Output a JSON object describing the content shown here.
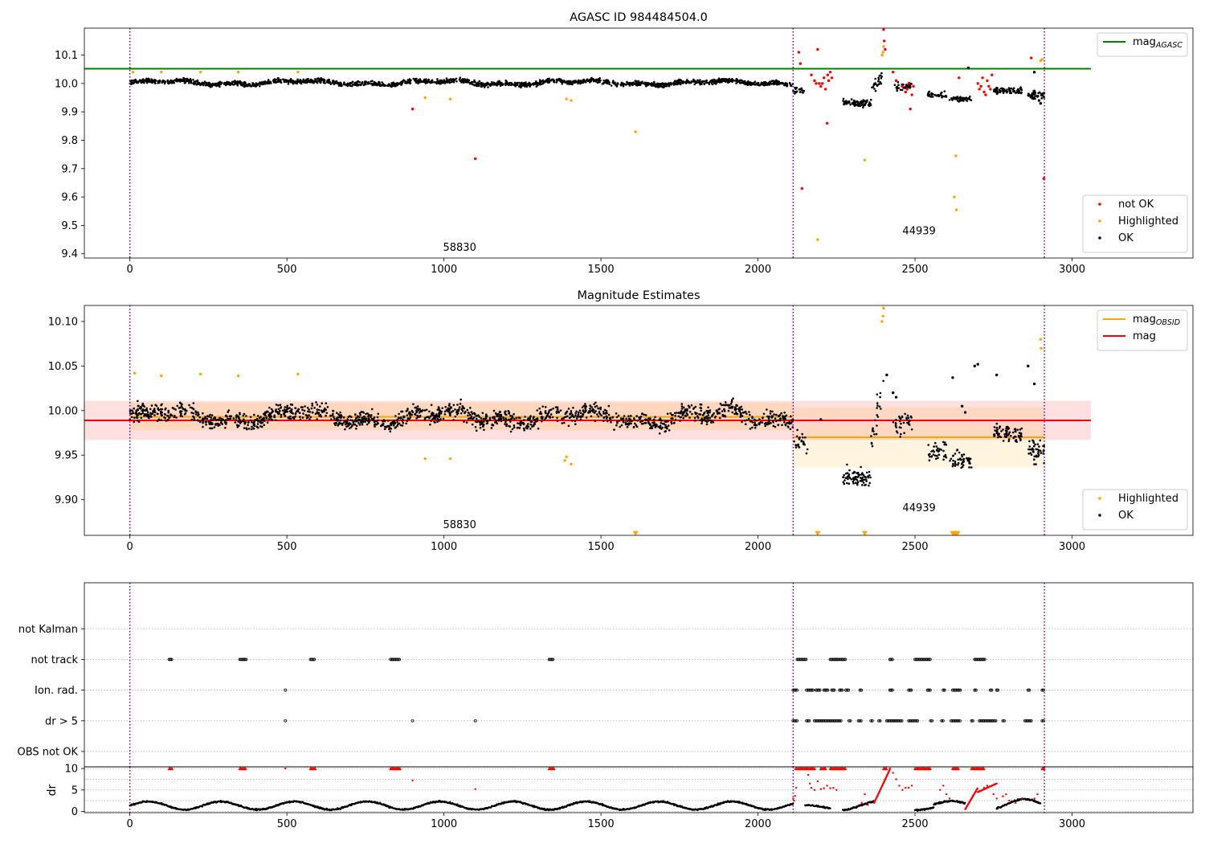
{
  "figure": {
    "background": "#ffffff"
  },
  "chart_data": [
    {
      "id": "top",
      "type": "scatter",
      "title": "AGASC ID 984484504.0",
      "xlim": [
        -145,
        3385
      ],
      "ylim": [
        9.385,
        10.195
      ],
      "xticks": [
        0,
        500,
        1000,
        1500,
        2000,
        2500,
        3000
      ],
      "yticks": [
        9.4,
        9.5,
        9.6,
        9.7,
        9.8,
        9.9,
        10.0,
        10.1
      ],
      "ytick_labels": [
        "9.4",
        "9.5",
        "9.6",
        "9.7",
        "9.8",
        "9.9",
        "10.0",
        "10.1"
      ],
      "grid": false,
      "vlines": [
        0,
        2112,
        2912
      ],
      "obsid_labels": [
        {
          "text": "58830",
          "x": 1050,
          "y": 9.41
        },
        {
          "text": "44939",
          "x": 2513,
          "y": 9.468
        }
      ],
      "hlines": [
        {
          "name": "mag",
          "sub": "AGASC",
          "y": 10.052,
          "x0": -145,
          "x1": 3060,
          "color": "#008000",
          "band": null
        }
      ],
      "segments": [
        {
          "x0": 0,
          "x1": 2112,
          "base": 10.003,
          "noise": 0.012,
          "trend": "osc",
          "density": 0.85
        },
        {
          "x0": 2112,
          "x1": 2150,
          "base": 9.975,
          "noise": 0.015,
          "trend": "flat",
          "density": 0.5
        },
        {
          "x0": 2270,
          "x1": 2360,
          "base": 9.93,
          "noise": 0.02,
          "trend": "flat",
          "density": 0.9
        },
        {
          "x0": 2360,
          "x1": 2400,
          "base": 9.97,
          "noise": 0.03,
          "trend": "rise",
          "density": 0.6
        },
        {
          "x0": 2430,
          "x1": 2490,
          "base": 9.99,
          "noise": 0.02,
          "trend": "flat",
          "density": 0.6
        },
        {
          "x0": 2540,
          "x1": 2600,
          "base": 9.96,
          "noise": 0.015,
          "trend": "flat",
          "density": 0.6
        },
        {
          "x0": 2610,
          "x1": 2680,
          "base": 9.945,
          "noise": 0.015,
          "trend": "flat",
          "density": 0.7
        },
        {
          "x0": 2750,
          "x1": 2840,
          "base": 9.975,
          "noise": 0.015,
          "trend": "flat",
          "density": 0.8
        },
        {
          "x0": 2860,
          "x1": 2912,
          "base": 9.96,
          "noise": 0.02,
          "trend": "flat",
          "density": 0.8
        }
      ],
      "series": [
        {
          "name": "not OK",
          "color": "#ff0000",
          "marker": "dot",
          "x": [
            900,
            1100,
            2130,
            2135,
            2140,
            2170,
            2180,
            2185,
            2190,
            2195,
            2200,
            2205,
            2210,
            2215,
            2220,
            2222,
            2225,
            2230,
            2235,
            2400,
            2402,
            2405,
            2430,
            2440,
            2460,
            2470,
            2475,
            2480,
            2485,
            2490,
            2495,
            2640,
            2700,
            2705,
            2710,
            2715,
            2720,
            2725,
            2730,
            2735,
            2740,
            2745,
            2870,
            2910
          ],
          "y": [
            9.91,
            9.735,
            10.11,
            10.07,
            9.63,
            10.03,
            10.01,
            10.0,
            10.12,
            10.0,
            9.99,
            10.0,
            10.02,
            9.98,
            9.86,
            10.03,
            10.01,
            10.04,
            10.02,
            10.19,
            10.15,
            10.12,
            10.04,
            10.01,
            9.99,
            9.97,
            9.98,
            10.0,
            9.91,
            9.96,
            9.99,
            10.02,
            10.0,
            9.98,
            9.99,
            10.02,
            9.97,
            9.96,
            10.01,
            9.99,
            9.98,
            10.03,
            10.09,
            9.665
          ]
        },
        {
          "name": "Highlighted",
          "color": "#ffa500",
          "marker": "dot",
          "x": [
            10,
            100,
            225,
            345,
            535,
            940,
            1020,
            1390,
            1405,
            1610,
            2190,
            2340,
            2395,
            2398,
            2400,
            2625,
            2630,
            2632,
            2900,
            2905
          ],
          "y": [
            10.04,
            10.04,
            10.04,
            10.04,
            10.04,
            9.95,
            9.945,
            9.945,
            9.94,
            9.83,
            9.45,
            9.73,
            10.1,
            10.11,
            10.13,
            9.6,
            9.745,
            9.555,
            10.08,
            10.085
          ]
        },
        {
          "name": "OK",
          "color": "#000000",
          "marker": "dot",
          "x": [
            2670,
            2880,
            2895,
            2900
          ],
          "y": [
            10.055,
            10.04,
            9.94,
            9.93
          ]
        }
      ],
      "legends": [
        {
          "position": "upper-right",
          "entries": [
            {
              "label": "mag",
              "sub": "AGASC",
              "color": "#008000",
              "kind": "line"
            }
          ]
        },
        {
          "position": "lower-right",
          "entries": [
            {
              "label": "not OK",
              "color": "#ff0000",
              "kind": "dot"
            },
            {
              "label": "Highlighted",
              "color": "#ffa500",
              "kind": "dot"
            },
            {
              "label": "OK",
              "color": "#000000",
              "kind": "dot"
            }
          ]
        }
      ]
    },
    {
      "id": "mid",
      "type": "scatter",
      "title": "Magnitude Estimates",
      "xlim": [
        -145,
        3385
      ],
      "ylim": [
        9.86,
        10.118
      ],
      "xticks": [
        0,
        500,
        1000,
        1500,
        2000,
        2500,
        3000
      ],
      "yticks": [
        9.9,
        9.95,
        10.0,
        10.05,
        10.1
      ],
      "ytick_labels": [
        "9.90",
        "9.95",
        "10.00",
        "10.05",
        "10.10"
      ],
      "grid": false,
      "vlines": [
        0,
        2112,
        2912
      ],
      "obsid_labels": [
        {
          "text": "58830",
          "x": 1050,
          "y": 9.868
        },
        {
          "text": "44939",
          "x": 2513,
          "y": 9.887
        }
      ],
      "hlines": [
        {
          "name": "mag",
          "sub": "",
          "y": 9.989,
          "x0": -145,
          "x1": 3060,
          "color": "#ff0000",
          "band": [
            9.967,
            10.011
          ],
          "band_color": "#ff0000",
          "band_opacity": 0.12
        },
        {
          "name": "mag",
          "sub": "OBSID",
          "y": 9.993,
          "x0": 0,
          "x1": 2112,
          "color": "#ffa500",
          "band": [
            9.978,
            10.009
          ],
          "band_color": "#ffa500",
          "band_opacity": 0.15
        },
        {
          "name": "mag",
          "sub": "OBSID",
          "y": 9.97,
          "x0": 2112,
          "x1": 2912,
          "color": "#ffa500",
          "band": [
            9.936,
            10.004
          ],
          "band_color": "#ffa500",
          "band_opacity": 0.12
        }
      ],
      "segments": [
        {
          "x0": 0,
          "x1": 2112,
          "base": 9.993,
          "noise": 0.014,
          "trend": "osc",
          "density": 0.75
        },
        {
          "x0": 2112,
          "x1": 2160,
          "base": 9.965,
          "noise": 0.02,
          "trend": "flat",
          "density": 0.5
        },
        {
          "x0": 2270,
          "x1": 2360,
          "base": 9.925,
          "noise": 0.015,
          "trend": "flat",
          "density": 0.9
        },
        {
          "x0": 2360,
          "x1": 2400,
          "base": 9.965,
          "noise": 0.025,
          "trend": "rise",
          "density": 0.6
        },
        {
          "x0": 2430,
          "x1": 2490,
          "base": 9.985,
          "noise": 0.02,
          "trend": "flat",
          "density": 0.6
        },
        {
          "x0": 2540,
          "x1": 2600,
          "base": 9.955,
          "noise": 0.015,
          "trend": "flat",
          "density": 0.6
        },
        {
          "x0": 2610,
          "x1": 2680,
          "base": 9.945,
          "noise": 0.015,
          "trend": "flat",
          "density": 0.7
        },
        {
          "x0": 2750,
          "x1": 2840,
          "base": 9.975,
          "noise": 0.015,
          "trend": "flat",
          "density": 0.8
        },
        {
          "x0": 2860,
          "x1": 2912,
          "base": 9.955,
          "noise": 0.02,
          "trend": "flat",
          "density": 0.8
        }
      ],
      "series": [
        {
          "name": "Highlighted",
          "color": "#ffa500",
          "marker": "dot",
          "x": [
            15,
            100,
            225,
            345,
            535,
            940,
            1020,
            1385,
            1390,
            1405,
            2395,
            2398,
            2400,
            2900,
            2902
          ],
          "y": [
            10.042,
            10.039,
            10.041,
            10.039,
            10.041,
            9.946,
            9.946,
            9.944,
            9.948,
            9.94,
            10.1,
            10.106,
            10.115,
            10.08,
            10.07
          ]
        },
        {
          "name": "Highlighted (below axis)",
          "color": "#ffa500",
          "marker": "triangle-down",
          "x": [
            1610,
            2190,
            2340,
            2620,
            2625,
            2630,
            2635
          ],
          "y": [
            9.862,
            9.862,
            9.862,
            9.862,
            9.862,
            9.862,
            9.862
          ]
        },
        {
          "name": "OK",
          "color": "#000000",
          "marker": "dot",
          "x": [
            2200,
            2410,
            2430,
            2440,
            2620,
            2650,
            2660,
            2690,
            2700,
            2760,
            2860,
            2880
          ],
          "y": [
            9.99,
            10.04,
            10.02,
            10.015,
            10.037,
            10.005,
            9.998,
            10.05,
            10.052,
            10.04,
            10.05,
            10.03
          ]
        }
      ],
      "legends": [
        {
          "position": "upper-right",
          "entries": [
            {
              "label": "mag",
              "sub": "OBSID",
              "color": "#ffa500",
              "kind": "line"
            },
            {
              "label": "mag",
              "sub": "",
              "color": "#ff0000",
              "kind": "line"
            }
          ]
        },
        {
          "position": "lower-right",
          "entries": [
            {
              "label": "Highlighted",
              "color": "#ffa500",
              "kind": "dot"
            },
            {
              "label": "OK",
              "color": "#000000",
              "kind": "dot"
            }
          ]
        }
      ]
    },
    {
      "id": "flags",
      "type": "scatter",
      "xlim": [
        -145,
        3385
      ],
      "ylim": [
        -0.5,
        5.5
      ],
      "categories": [
        "OBS not OK",
        "dr > 5",
        "Ion. rad.",
        "not track",
        "not Kalman"
      ],
      "grid": true,
      "vlines": [
        0,
        2112,
        2912
      ],
      "rows": [
        {
          "row": "not track",
          "ranges": [
            [
              125,
              135
            ],
            [
              350,
              370
            ],
            [
              575,
              590
            ],
            [
              830,
              860
            ],
            [
              1335,
              1350
            ],
            [
              2125,
              2155
            ],
            [
              2230,
              2280
            ],
            [
              2420,
              2430
            ],
            [
              2500,
              2550
            ],
            [
              2690,
              2725
            ]
          ]
        },
        {
          "row": "Ion. rad.",
          "ranges": [
            [
              495,
              497
            ],
            [
              2112,
              2125
            ],
            [
              2155,
              2175
            ],
            [
              2185,
              2200
            ],
            [
              2210,
              2225
            ],
            [
              2235,
              2245
            ],
            [
              2260,
              2270
            ],
            [
              2280,
              2290
            ],
            [
              2325,
              2330
            ],
            [
              2420,
              2428
            ],
            [
              2480,
              2490
            ],
            [
              2540,
              2550
            ],
            [
              2590,
              2596
            ],
            [
              2620,
              2645
            ],
            [
              2690,
              2696
            ],
            [
              2740,
              2744
            ],
            [
              2760,
              2764
            ],
            [
              2860,
              2864
            ],
            [
              2905,
              2910
            ]
          ]
        },
        {
          "row": "dr > 5",
          "ranges": [
            [
              495,
              497
            ],
            [
              900,
              902
            ],
            [
              1100,
              1102
            ],
            [
              2112,
              2125
            ],
            [
              2155,
              2165
            ],
            [
              2180,
              2265
            ],
            [
              2290,
              2295
            ],
            [
              2320,
              2330
            ],
            [
              2360,
              2365
            ],
            [
              2385,
              2390
            ],
            [
              2410,
              2460
            ],
            [
              2480,
              2510
            ],
            [
              2550,
              2555
            ],
            [
              2585,
              2590
            ],
            [
              2615,
              2645
            ],
            [
              2680,
              2685
            ],
            [
              2705,
              2760
            ],
            [
              2780,
              2785
            ],
            [
              2850,
              2870
            ],
            [
              2905,
              2912
            ]
          ]
        }
      ]
    },
    {
      "id": "dr",
      "type": "scatter",
      "xlim": [
        -145,
        3385
      ],
      "ylim": [
        -0.3,
        10.4
      ],
      "yticks": [
        0,
        5,
        10
      ],
      "ytick_labels": [
        "0",
        "5",
        "10"
      ],
      "ylabel": "dr",
      "xticks": [
        0,
        500,
        1000,
        1500,
        2000,
        2500,
        3000
      ],
      "vlines": [
        0,
        2112,
        2912
      ],
      "clip_value": 10,
      "red_clip_ranges": [
        [
          125,
          135
        ],
        [
          350,
          370
        ],
        [
          575,
          590
        ],
        [
          830,
          860
        ],
        [
          1335,
          1350
        ],
        [
          2120,
          2180
        ],
        [
          2200,
          2215
        ],
        [
          2230,
          2280
        ],
        [
          2400,
          2410
        ],
        [
          2500,
          2550
        ],
        [
          2620,
          2640
        ],
        [
          2680,
          2720
        ],
        [
          2905,
          2912
        ]
      ],
      "red_points": {
        "x": [
          495,
          900,
          1100,
          2112,
          2115,
          2118,
          2122,
          2160,
          2165,
          2170,
          2180,
          2190,
          2200,
          2210,
          2220,
          2230,
          2240,
          2250,
          2330,
          2340,
          2350,
          2420,
          2430,
          2440,
          2450,
          2460,
          2470,
          2480,
          2490,
          2580,
          2590,
          2600,
          2610,
          2720,
          2730,
          2750,
          2760,
          2780,
          2790,
          2800,
          2820,
          2840,
          2880,
          2890
        ],
        "y": [
          10,
          7.2,
          5.2,
          3.0,
          2.5,
          3.6,
          5.5,
          8.5,
          6.5,
          5.5,
          5.0,
          7.0,
          5.2,
          5.4,
          6.0,
          5.4,
          5.5,
          5.0,
          2.0,
          4.0,
          1.5,
          10,
          9.0,
          7.5,
          6.0,
          5.0,
          5.5,
          5.5,
          6.0,
          5.0,
          6.0,
          4.0,
          3.0,
          5.5,
          6.0,
          4.0,
          3.0,
          3.5,
          4.0,
          2.5,
          2.0,
          3.0,
          3.0,
          4.0
        ]
      },
      "red_ramps": [
        [
          2370,
          2420,
          2.0,
          9.8
        ],
        [
          2660,
          2700,
          0.5,
          5.5
        ],
        [
          2700,
          2760,
          4.5,
          6.5
        ]
      ],
      "black_curve": "wave",
      "black_segments": [
        [
          0,
          2112,
          0.3,
          2.4
        ],
        [
          2150,
          2230,
          0.5,
          1.5
        ],
        [
          2270,
          2370,
          0.2,
          2.5
        ],
        [
          2500,
          2560,
          0.2,
          1.5
        ],
        [
          2560,
          2660,
          0.5,
          2.5
        ],
        [
          2760,
          2900,
          0.2,
          3.0
        ]
      ]
    }
  ]
}
